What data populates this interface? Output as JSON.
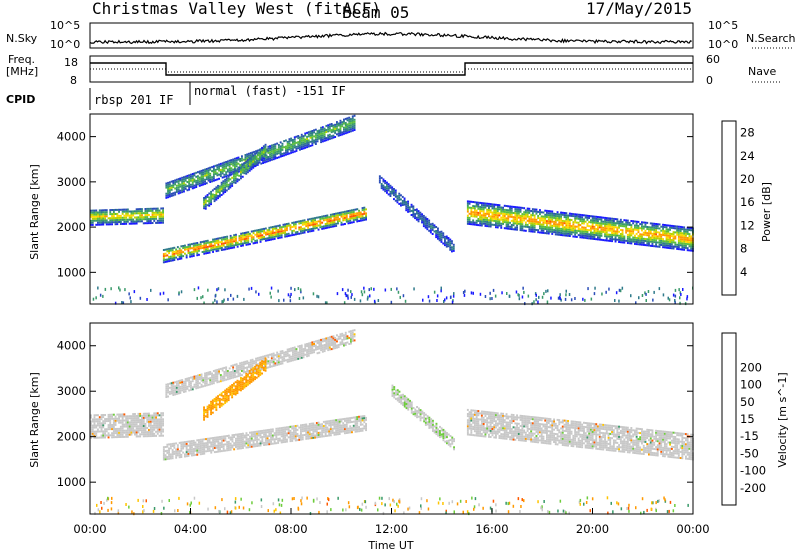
{
  "header": {
    "title": "Christmas Valley West (fitACF)",
    "beam": "Beam 05",
    "date": "17/May/2015"
  },
  "strip_labels": {
    "nsky": "N.Sky",
    "nsky_top": "10^5",
    "nsky_bottom": "10^0",
    "nsearch": "N.Search",
    "nsearch_top": "10^5",
    "nsearch_bottom": "10^0",
    "freq": "Freq.",
    "freq_unit": "[MHz]",
    "freq_top": "18",
    "freq_bottom": "8",
    "nave": "Nave",
    "nave_top": "60",
    "nave_bottom": "0",
    "cpid": "CPID",
    "cpid_1": "rbsp 201 IF",
    "cpid_2": "normal (fast) -151 IF"
  },
  "colors": {
    "power_scale": [
      "#1a1aff",
      "#2a4db8",
      "#2f7a8a",
      "#3a9a6a",
      "#5cbf3c",
      "#b8d400",
      "#ffd800",
      "#ff9a00",
      "#ff5500",
      "#ff0000"
    ],
    "velocity_scale": [
      "#ff0000",
      "#ff5a00",
      "#ff9a00",
      "#ffc400",
      "#c8c8c8",
      "#c8c8c8",
      "#6ecc3c",
      "#3a9a6a",
      "#2a4db8",
      "#1a1aff"
    ],
    "ground_scatter": "#c8c8c8"
  },
  "chart_data": [
    {
      "type": "heatmap",
      "name": "Power",
      "ylabel": "Slant Range [km]",
      "ylim": [
        300,
        4500
      ],
      "yticks": [
        1000,
        2000,
        3000,
        4000
      ],
      "colorbar_label": "Power [dB]",
      "colorbar_ticks": [
        4,
        8,
        12,
        16,
        20,
        24,
        28
      ],
      "colorbar_range": [
        0,
        30
      ],
      "bands": [
        {
          "t": [
            0.0,
            2.9
          ],
          "range_center": [
            2200,
            2250
          ],
          "width": 350,
          "value": 20
        },
        {
          "t": [
            2.9,
            11.0
          ],
          "range_center": [
            1350,
            2300
          ],
          "width": 300,
          "value": 26
        },
        {
          "t": [
            3.0,
            10.5
          ],
          "range_center": [
            2800,
            4300
          ],
          "width": 350,
          "value": 14
        },
        {
          "t": [
            4.5,
            7.0
          ],
          "range_center": [
            2500,
            3700
          ],
          "width": 300,
          "value": 16
        },
        {
          "t": [
            11.5,
            14.5
          ],
          "range_center": [
            3000,
            1500
          ],
          "width": 250,
          "value": 8
        },
        {
          "t": [
            15.0,
            24.0
          ],
          "range_center": [
            2300,
            1700
          ],
          "width": 500,
          "value": 24
        }
      ]
    },
    {
      "type": "heatmap",
      "name": "Velocity",
      "ylabel": "Slant Range [km]",
      "xlabel": "Time UT",
      "ylim": [
        300,
        4500
      ],
      "yticks": [
        1000,
        2000,
        3000,
        4000
      ],
      "xticks": [
        "00:00",
        "04:00",
        "08:00",
        "12:00",
        "16:00",
        "20:00",
        "00:00"
      ],
      "xlim_hours": [
        0,
        24
      ],
      "colorbar_label": "Velocity [m s^-1]",
      "colorbar_ticks": [
        -200,
        -100,
        -50,
        -15,
        15,
        50,
        100,
        200
      ],
      "bands": [
        {
          "t": [
            0.0,
            2.9
          ],
          "range_center": [
            2200,
            2250
          ],
          "width": 500,
          "value": 0
        },
        {
          "t": [
            2.9,
            11.0
          ],
          "range_center": [
            1650,
            2300
          ],
          "width": 350,
          "value": 0
        },
        {
          "t": [
            3.0,
            10.5
          ],
          "range_center": [
            3000,
            4200
          ],
          "width": 300,
          "value": 0
        },
        {
          "t": [
            4.5,
            7.0
          ],
          "range_center": [
            2500,
            3600
          ],
          "width": 300,
          "value": -60
        },
        {
          "t": [
            12.0,
            14.5
          ],
          "range_center": [
            3000,
            1800
          ],
          "width": 250,
          "value": 40
        },
        {
          "t": [
            15.0,
            24.0
          ],
          "range_center": [
            2300,
            1750
          ],
          "width": 550,
          "value": 0
        }
      ]
    }
  ]
}
